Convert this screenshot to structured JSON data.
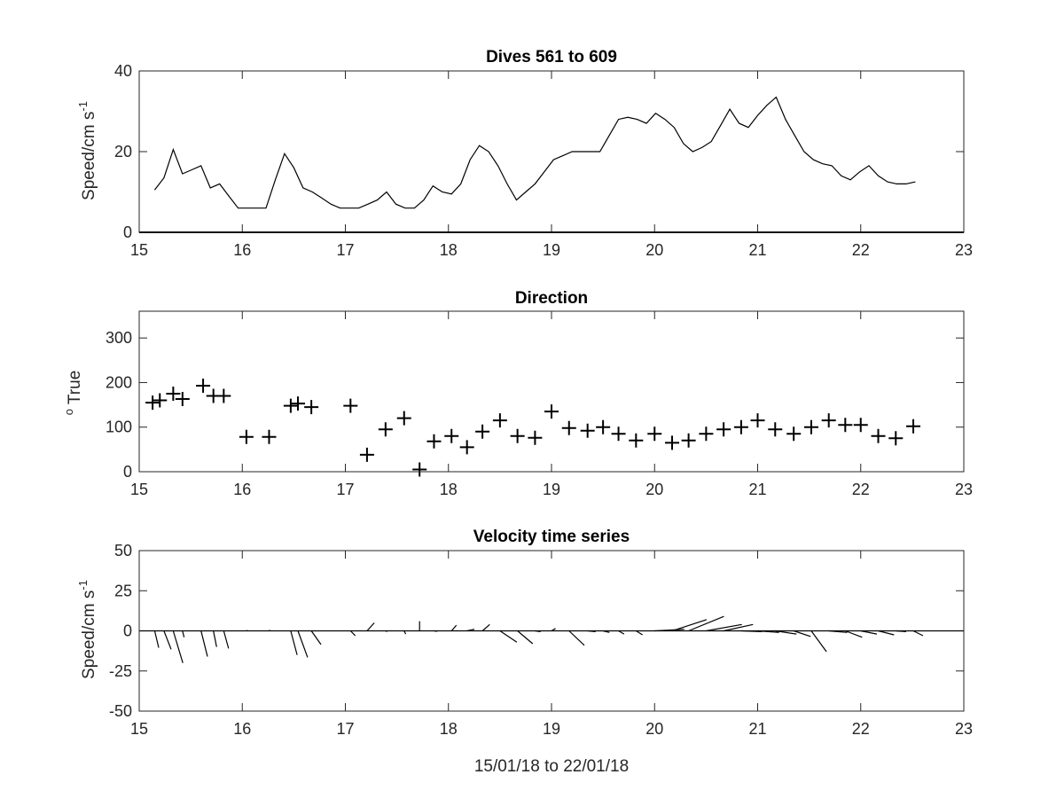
{
  "colors": {
    "axes": "#262626",
    "line": "#000000",
    "background": "#ffffff"
  },
  "chart_data": [
    {
      "id": "speed",
      "type": "line",
      "title": "Dives 561 to 609",
      "ylabel": {
        "base": "Speed/cm s",
        "superscript": "-1"
      },
      "xlim": [
        15,
        23
      ],
      "ylim": [
        0,
        40
      ],
      "xticks": [
        "15",
        "16",
        "17",
        "18",
        "19",
        "20",
        "21",
        "22",
        "23"
      ],
      "yticks": [
        "0",
        "20",
        "40"
      ],
      "grid": false,
      "x": [
        15.15,
        15.24,
        15.33,
        15.42,
        15.51,
        15.6,
        15.69,
        15.78,
        15.87,
        15.96,
        16.05,
        16.14,
        16.23,
        16.32,
        16.41,
        16.5,
        16.59,
        16.68,
        16.77,
        16.86,
        16.95,
        17.04,
        17.13,
        17.22,
        17.31,
        17.4,
        17.49,
        17.58,
        17.67,
        17.76,
        17.85,
        17.94,
        18.03,
        18.12,
        18.21,
        18.3,
        18.39,
        18.48,
        18.57,
        18.66,
        18.75,
        18.84,
        18.93,
        19.02,
        19.11,
        19.2,
        19.29,
        19.38,
        19.47,
        19.56,
        19.65,
        19.74,
        19.83,
        19.92,
        20.01,
        20.1,
        20.19,
        20.28,
        20.37,
        20.46,
        20.55,
        20.64,
        20.73,
        20.82,
        20.91,
        21.0,
        21.09,
        21.18,
        21.27,
        21.36,
        21.45,
        21.54,
        21.63,
        21.72,
        21.81,
        21.9,
        21.99,
        22.08,
        22.17,
        22.26,
        22.35,
        22.44,
        22.53
      ],
      "y": [
        10.5,
        13.5,
        20.5,
        14.5,
        15.5,
        16.5,
        11,
        12,
        9,
        6,
        6,
        6,
        6,
        13,
        19.5,
        16,
        11,
        10,
        8.5,
        7,
        6,
        6,
        6,
        7,
        8,
        10,
        7,
        6,
        6,
        8,
        11.5,
        10,
        9.5,
        12,
        18,
        21.5,
        20,
        16.5,
        12,
        8,
        10,
        12,
        15,
        18,
        19,
        20,
        20,
        20,
        20,
        24,
        28,
        28.5,
        28,
        27,
        29.5,
        28,
        26,
        22,
        20,
        21,
        22.5,
        26.5,
        30.5,
        27,
        26,
        29,
        31.5,
        33.5,
        28,
        24,
        20,
        18,
        17,
        16.5,
        14,
        13,
        15,
        16.5,
        14,
        12.5,
        12,
        12,
        12.5
      ]
    },
    {
      "id": "direction",
      "type": "scatter",
      "marker": "+",
      "title": "Direction",
      "ylabel": {
        "superscript": "o",
        "base": " True"
      },
      "xlim": [
        15,
        23
      ],
      "ylim": [
        0,
        360
      ],
      "xticks": [
        "15",
        "16",
        "17",
        "18",
        "19",
        "20",
        "21",
        "22",
        "23"
      ],
      "yticks": [
        "0",
        "100",
        "200",
        "300"
      ],
      "grid": false,
      "x": [
        15.13,
        15.2,
        15.33,
        15.42,
        15.62,
        15.72,
        15.82,
        16.04,
        16.26,
        16.47,
        16.54,
        16.67,
        17.05,
        17.21,
        17.39,
        17.57,
        17.72,
        17.86,
        18.03,
        18.18,
        18.33,
        18.5,
        18.67,
        18.84,
        19.0,
        19.17,
        19.35,
        19.5,
        19.65,
        19.82,
        20.0,
        20.17,
        20.33,
        20.5,
        20.67,
        20.84,
        21.0,
        21.17,
        21.35,
        21.52,
        21.69,
        21.85,
        22.0,
        22.17,
        22.34,
        22.51
      ],
      "y": [
        155,
        160,
        175,
        163,
        193,
        170,
        170,
        78,
        78,
        148,
        153,
        145,
        148,
        38,
        95,
        120,
        5,
        68,
        80,
        55,
        90,
        115,
        80,
        76,
        135,
        98,
        92,
        100,
        85,
        70,
        85,
        65,
        70,
        85,
        95,
        100,
        115,
        95,
        85,
        100,
        115,
        105,
        105,
        80,
        75,
        102
      ]
    },
    {
      "id": "velocity",
      "type": "quiver",
      "title": "Velocity time series",
      "ylabel": {
        "base": "Speed/cm s",
        "superscript": "-1"
      },
      "xlabel": "15/01/18 to 22/01/18",
      "xlim": [
        15,
        23
      ],
      "ylim": [
        -50,
        50
      ],
      "xticks": [
        "15",
        "16",
        "17",
        "18",
        "19",
        "20",
        "21",
        "22",
        "23"
      ],
      "yticks": [
        "-50",
        "-25",
        "0",
        "25",
        "50"
      ],
      "grid": false,
      "x": [
        15.15,
        15.24,
        15.33,
        15.42,
        15.6,
        15.72,
        15.82,
        16.04,
        16.26,
        16.47,
        16.54,
        16.67,
        17.05,
        17.21,
        17.39,
        17.57,
        17.72,
        17.86,
        18.03,
        18.18,
        18.33,
        18.5,
        18.67,
        18.84,
        19.0,
        19.17,
        19.35,
        19.5,
        19.65,
        19.82,
        20.0,
        20.17,
        20.33,
        20.5,
        20.67,
        20.84,
        21.0,
        21.17,
        21.35,
        21.52,
        21.69,
        21.85,
        22.0,
        22.17,
        22.34,
        22.51
      ],
      "u": [
        2.5,
        4.5,
        6,
        1,
        4,
        2,
        3,
        0.8,
        0.5,
        4,
        6,
        6,
        3,
        4.5,
        1,
        1,
        0,
        2,
        3,
        4.6,
        4.5,
        10.5,
        9.5,
        3.5,
        2.5,
        9.5,
        5,
        4,
        3.5,
        4,
        18.5,
        21.5,
        22,
        22.3,
        18.3,
        13,
        13.3,
        13.3,
        10.5,
        9.5,
        11.5,
        10.5,
        10,
        9.8,
        6.5,
        6
      ],
      "v": [
        -10.5,
        -11.5,
        -20,
        -4,
        -16,
        -10,
        -11,
        0.2,
        0.5,
        -15,
        -16.5,
        -8.5,
        -3,
        5,
        -0.5,
        -2,
        6,
        -0.3,
        3.5,
        1,
        4,
        -7,
        -8,
        -0.5,
        1.5,
        -9,
        -0.5,
        -1,
        -2,
        -2.5,
        1,
        7,
        9,
        4,
        4,
        -0.5,
        -1,
        -2,
        -3.5,
        -13,
        -1,
        -4,
        -2,
        -2.5,
        -0.5,
        -3
      ]
    }
  ]
}
